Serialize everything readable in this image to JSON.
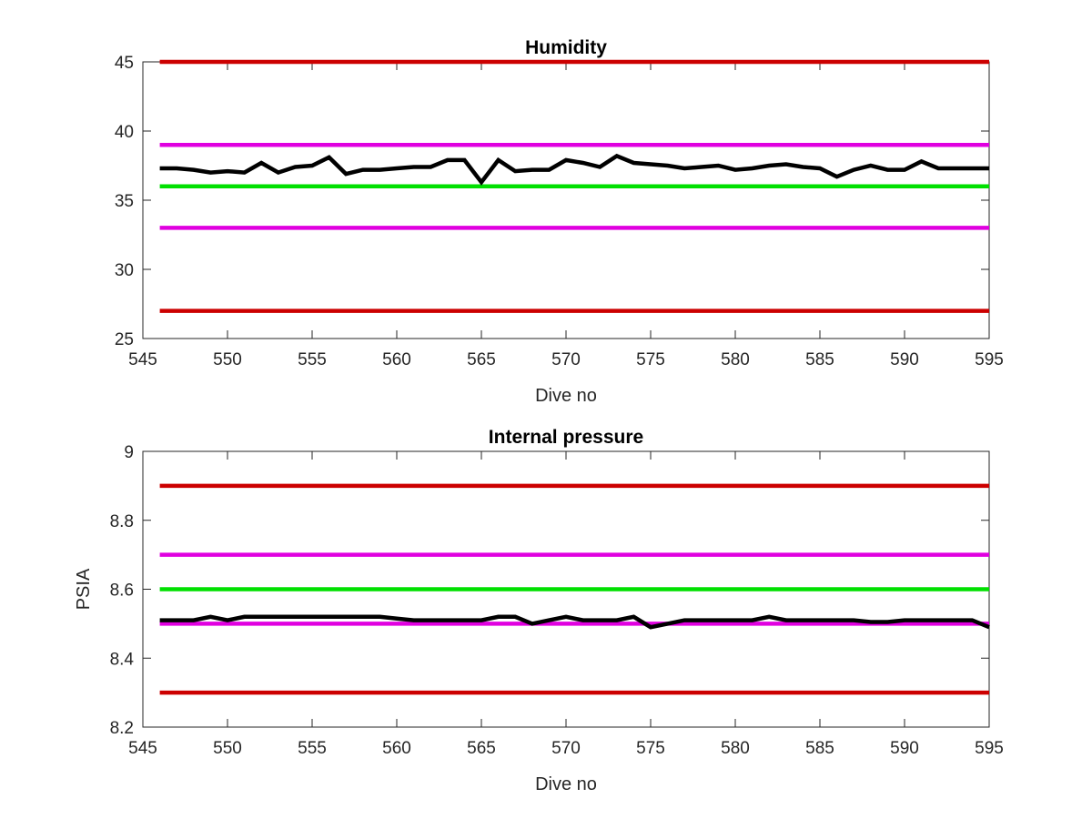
{
  "chart_data": [
    {
      "type": "line",
      "title": "Humidity",
      "xlabel": "Dive no",
      "ylabel": "",
      "xlim": [
        545,
        595
      ],
      "ylim": [
        25,
        45
      ],
      "xticks": [
        545,
        550,
        555,
        560,
        565,
        570,
        575,
        580,
        585,
        590,
        595
      ],
      "yticks": [
        25,
        30,
        35,
        40,
        45
      ],
      "grid": false,
      "series": [
        {
          "color": "#cc0000",
          "x": [
            546,
            595
          ],
          "y": [
            45,
            45
          ]
        },
        {
          "color": "#e000e0",
          "x": [
            546,
            595
          ],
          "y": [
            39,
            39
          ]
        },
        {
          "color": "#00e000",
          "x": [
            546,
            595
          ],
          "y": [
            36,
            36
          ]
        },
        {
          "color": "#e000e0",
          "x": [
            546,
            595
          ],
          "y": [
            33,
            33
          ]
        },
        {
          "color": "#cc0000",
          "x": [
            546,
            595
          ],
          "y": [
            27,
            27
          ]
        },
        {
          "color": "#000000",
          "x": [
            546,
            547,
            548,
            549,
            550,
            551,
            552,
            553,
            554,
            555,
            556,
            557,
            558,
            559,
            560,
            561,
            562,
            563,
            564,
            565,
            566,
            567,
            568,
            569,
            570,
            571,
            572,
            573,
            574,
            575,
            576,
            577,
            578,
            579,
            580,
            581,
            582,
            583,
            584,
            585,
            586,
            587,
            588,
            589,
            590,
            591,
            592,
            593,
            594,
            595
          ],
          "y": [
            37.3,
            37.3,
            37.2,
            37.0,
            37.1,
            37.0,
            37.7,
            37.0,
            37.4,
            37.5,
            38.1,
            36.9,
            37.2,
            37.2,
            37.3,
            37.4,
            37.4,
            37.9,
            37.9,
            36.3,
            37.9,
            37.1,
            37.2,
            37.2,
            37.9,
            37.7,
            37.4,
            38.2,
            37.7,
            37.6,
            37.5,
            37.3,
            37.4,
            37.5,
            37.2,
            37.3,
            37.5,
            37.6,
            37.4,
            37.3,
            36.7,
            37.2,
            37.5,
            37.2,
            37.2,
            37.8,
            37.3,
            37.3,
            37.3,
            37.3
          ]
        }
      ]
    },
    {
      "type": "line",
      "title": "Internal pressure",
      "xlabel": "Dive no",
      "ylabel": "PSIA",
      "xlim": [
        545,
        595
      ],
      "ylim": [
        8.2,
        9
      ],
      "xticks": [
        545,
        550,
        555,
        560,
        565,
        570,
        575,
        580,
        585,
        590,
        595
      ],
      "yticks": [
        8.2,
        8.4,
        8.6,
        8.8,
        9
      ],
      "grid": false,
      "series": [
        {
          "color": "#cc0000",
          "x": [
            546,
            595
          ],
          "y": [
            8.9,
            8.9
          ]
        },
        {
          "color": "#e000e0",
          "x": [
            546,
            595
          ],
          "y": [
            8.7,
            8.7
          ]
        },
        {
          "color": "#00e000",
          "x": [
            546,
            595
          ],
          "y": [
            8.6,
            8.6
          ]
        },
        {
          "color": "#e000e0",
          "x": [
            546,
            595
          ],
          "y": [
            8.5,
            8.5
          ]
        },
        {
          "color": "#cc0000",
          "x": [
            546,
            595
          ],
          "y": [
            8.3,
            8.3
          ]
        },
        {
          "color": "#000000",
          "x": [
            546,
            547,
            548,
            549,
            550,
            551,
            552,
            553,
            554,
            555,
            556,
            557,
            558,
            559,
            560,
            561,
            562,
            563,
            564,
            565,
            566,
            567,
            568,
            569,
            570,
            571,
            572,
            573,
            574,
            575,
            576,
            577,
            578,
            579,
            580,
            581,
            582,
            583,
            584,
            585,
            586,
            587,
            588,
            589,
            590,
            591,
            592,
            593,
            594,
            595
          ],
          "y": [
            8.51,
            8.51,
            8.51,
            8.52,
            8.51,
            8.52,
            8.52,
            8.52,
            8.52,
            8.52,
            8.52,
            8.52,
            8.52,
            8.52,
            8.515,
            8.51,
            8.51,
            8.51,
            8.51,
            8.51,
            8.52,
            8.52,
            8.5,
            8.51,
            8.52,
            8.51,
            8.51,
            8.51,
            8.52,
            8.49,
            8.5,
            8.51,
            8.51,
            8.51,
            8.51,
            8.51,
            8.52,
            8.51,
            8.51,
            8.51,
            8.51,
            8.51,
            8.505,
            8.505,
            8.51,
            8.51,
            8.51,
            8.51,
            8.51,
            8.49
          ]
        }
      ]
    }
  ]
}
